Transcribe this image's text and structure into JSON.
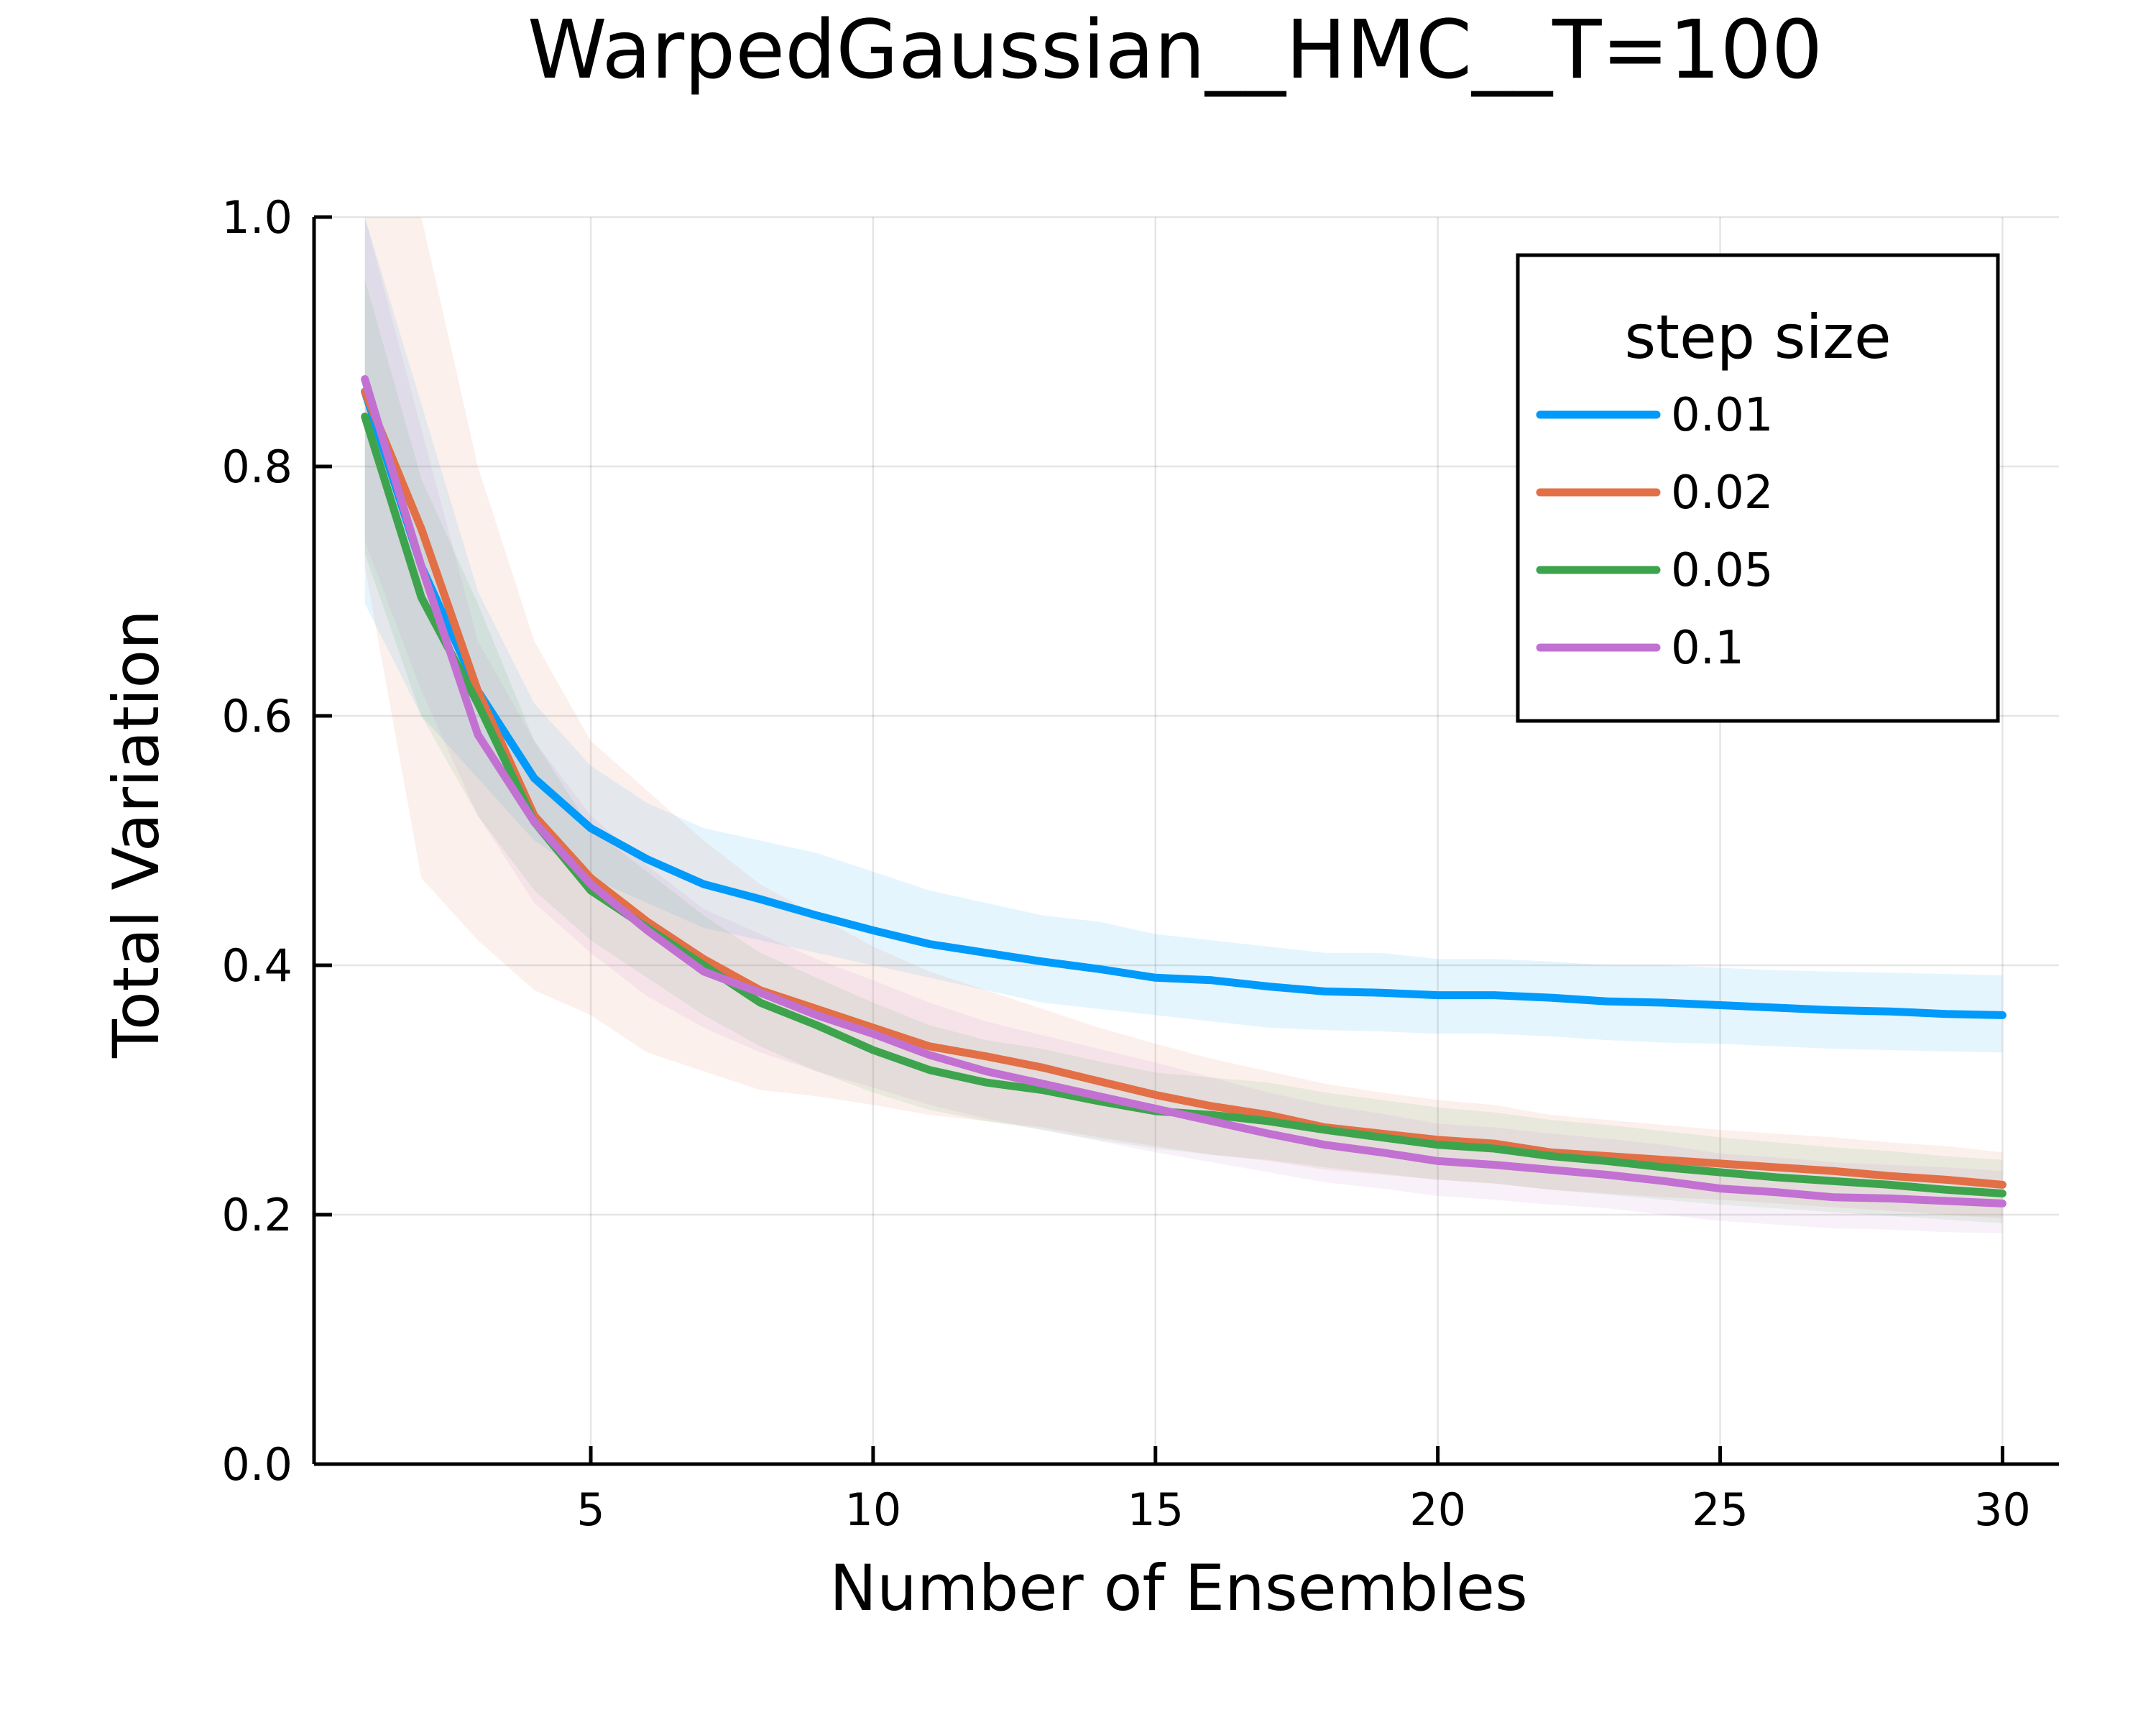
{
  "chart_data": {
    "type": "line",
    "title": "WarpedGaussian__HMC__T=100",
    "xlabel": "Number of Ensembles",
    "ylabel": "Total Variation",
    "xlim": [
      0.1,
      31
    ],
    "ylim": [
      0,
      1
    ],
    "xticks": [
      5,
      10,
      15,
      20,
      25,
      30
    ],
    "yticks": [
      0.0,
      0.2,
      0.4,
      0.6,
      0.8,
      1.0
    ],
    "xtick_labels": [
      "5",
      "10",
      "15",
      "20",
      "25",
      "30"
    ],
    "ytick_labels": [
      "0.0",
      "0.2",
      "0.4",
      "0.6",
      "0.8",
      "1.0"
    ],
    "grid": true,
    "legend": {
      "title": "step size",
      "position": "top-right"
    },
    "x": [
      1,
      2,
      3,
      4,
      5,
      6,
      7,
      8,
      9,
      10,
      11,
      12,
      13,
      14,
      15,
      16,
      17,
      18,
      19,
      20,
      21,
      22,
      23,
      24,
      25,
      26,
      27,
      28,
      29,
      30
    ],
    "series": [
      {
        "name": "0.01",
        "color": "#009AFA",
        "values": [
          0.86,
          0.72,
          0.62,
          0.55,
          0.51,
          0.485,
          0.465,
          0.453,
          0.44,
          0.428,
          0.417,
          0.41,
          0.403,
          0.397,
          0.39,
          0.388,
          0.383,
          0.379,
          0.378,
          0.376,
          0.376,
          0.374,
          0.371,
          0.37,
          0.368,
          0.366,
          0.364,
          0.363,
          0.361,
          0.36
        ],
        "band_low": [
          0.69,
          0.6,
          0.55,
          0.5,
          0.47,
          0.45,
          0.43,
          0.42,
          0.41,
          0.4,
          0.39,
          0.38,
          0.37,
          0.365,
          0.36,
          0.355,
          0.35,
          0.348,
          0.347,
          0.345,
          0.345,
          0.343,
          0.34,
          0.338,
          0.337,
          0.335,
          0.333,
          0.332,
          0.331,
          0.33
        ],
        "band_high": [
          1.0,
          0.85,
          0.7,
          0.61,
          0.56,
          0.53,
          0.51,
          0.5,
          0.49,
          0.475,
          0.46,
          0.45,
          0.44,
          0.435,
          0.425,
          0.42,
          0.415,
          0.41,
          0.41,
          0.405,
          0.405,
          0.403,
          0.4,
          0.4,
          0.398,
          0.396,
          0.395,
          0.394,
          0.393,
          0.392
        ]
      },
      {
        "name": "0.02",
        "color": "#E26F46",
        "values": [
          0.86,
          0.75,
          0.62,
          0.52,
          0.47,
          0.435,
          0.405,
          0.38,
          0.365,
          0.35,
          0.335,
          0.327,
          0.318,
          0.307,
          0.296,
          0.287,
          0.28,
          0.27,
          0.265,
          0.26,
          0.257,
          0.25,
          0.247,
          0.244,
          0.241,
          0.238,
          0.235,
          0.231,
          0.228,
          0.224
        ],
        "band_low": [
          0.72,
          0.47,
          0.42,
          0.38,
          0.36,
          0.33,
          0.315,
          0.3,
          0.295,
          0.288,
          0.28,
          0.275,
          0.27,
          0.262,
          0.255,
          0.248,
          0.243,
          0.236,
          0.232,
          0.228,
          0.225,
          0.22,
          0.217,
          0.214,
          0.212,
          0.209,
          0.206,
          0.203,
          0.2,
          0.197
        ],
        "band_high": [
          1.0,
          1.0,
          0.8,
          0.66,
          0.58,
          0.54,
          0.5,
          0.465,
          0.44,
          0.415,
          0.395,
          0.38,
          0.365,
          0.35,
          0.337,
          0.325,
          0.315,
          0.305,
          0.298,
          0.292,
          0.288,
          0.28,
          0.276,
          0.272,
          0.268,
          0.265,
          0.262,
          0.258,
          0.255,
          0.25
        ]
      },
      {
        "name": "0.05",
        "color": "#3DA44D",
        "values": [
          0.84,
          0.695,
          0.61,
          0.515,
          0.46,
          0.43,
          0.4,
          0.37,
          0.352,
          0.332,
          0.316,
          0.306,
          0.3,
          0.291,
          0.283,
          0.28,
          0.275,
          0.268,
          0.262,
          0.256,
          0.253,
          0.247,
          0.243,
          0.238,
          0.234,
          0.23,
          0.227,
          0.224,
          0.22,
          0.217
        ],
        "band_low": [
          0.73,
          0.6,
          0.52,
          0.46,
          0.42,
          0.39,
          0.36,
          0.335,
          0.315,
          0.298,
          0.284,
          0.275,
          0.268,
          0.26,
          0.253,
          0.248,
          0.244,
          0.238,
          0.233,
          0.228,
          0.225,
          0.22,
          0.216,
          0.212,
          0.208,
          0.205,
          0.202,
          0.199,
          0.196,
          0.193
        ],
        "band_high": [
          0.95,
          0.79,
          0.69,
          0.58,
          0.51,
          0.475,
          0.44,
          0.41,
          0.39,
          0.37,
          0.352,
          0.34,
          0.333,
          0.323,
          0.314,
          0.31,
          0.306,
          0.298,
          0.292,
          0.286,
          0.282,
          0.276,
          0.272,
          0.267,
          0.262,
          0.258,
          0.254,
          0.251,
          0.247,
          0.244
        ]
      },
      {
        "name": "0.1",
        "color": "#C271D2",
        "values": [
          0.87,
          0.72,
          0.585,
          0.515,
          0.465,
          0.428,
          0.395,
          0.378,
          0.36,
          0.345,
          0.328,
          0.315,
          0.305,
          0.295,
          0.285,
          0.275,
          0.265,
          0.256,
          0.25,
          0.243,
          0.24,
          0.236,
          0.232,
          0.227,
          0.221,
          0.218,
          0.214,
          0.213,
          0.211,
          0.209
        ],
        "band_low": [
          0.74,
          0.62,
          0.52,
          0.45,
          0.41,
          0.375,
          0.35,
          0.33,
          0.315,
          0.302,
          0.288,
          0.277,
          0.268,
          0.259,
          0.25,
          0.242,
          0.234,
          0.226,
          0.221,
          0.215,
          0.212,
          0.208,
          0.205,
          0.2,
          0.195,
          0.192,
          0.189,
          0.188,
          0.186,
          0.185
        ],
        "band_high": [
          1.0,
          0.83,
          0.66,
          0.58,
          0.52,
          0.48,
          0.445,
          0.425,
          0.405,
          0.388,
          0.37,
          0.355,
          0.344,
          0.333,
          0.322,
          0.31,
          0.298,
          0.288,
          0.281,
          0.273,
          0.27,
          0.265,
          0.261,
          0.256,
          0.249,
          0.246,
          0.242,
          0.24,
          0.238,
          0.235
        ]
      }
    ]
  }
}
